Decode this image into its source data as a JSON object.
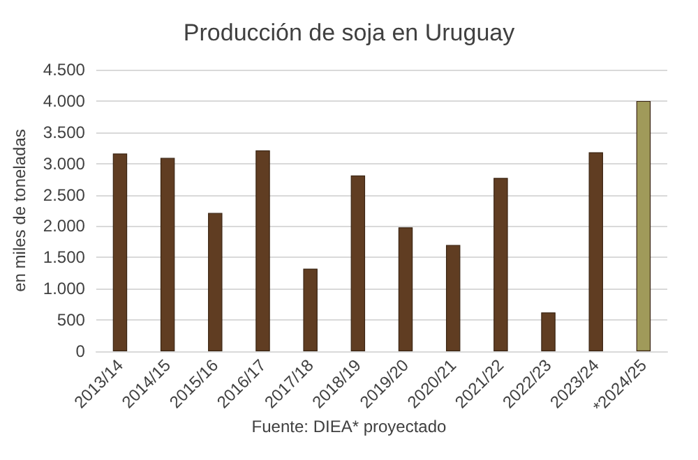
{
  "chart_data": {
    "type": "bar",
    "title": "Producción de soja en Uruguay",
    "ylabel": "en miles de toneladas",
    "categories": [
      "2013/14",
      "2014/15",
      "2015/16",
      "2016/17",
      "2017/18",
      "2018/19",
      "2019/20",
      "2020/21",
      "2021/22",
      "2022/23",
      "2023/24",
      "*2024/25"
    ],
    "values": [
      3160,
      3090,
      2210,
      3210,
      1320,
      2810,
      1980,
      1700,
      2770,
      620,
      3180,
      4000
    ],
    "colors": [
      "#603d22",
      "#603d22",
      "#603d22",
      "#603d22",
      "#603d22",
      "#603d22",
      "#603d22",
      "#603d22",
      "#603d22",
      "#603d22",
      "#603d22",
      "#a09a5a"
    ],
    "ylim": [
      0,
      4500
    ],
    "yticks": [
      0,
      500,
      {
        "value": 1000,
        "label": "1.000"
      },
      {
        "value": 1500,
        "label": "1.500"
      },
      {
        "value": 2000,
        "label": "2.000"
      },
      {
        "value": 2500,
        "label": "2.500"
      },
      {
        "value": 3000,
        "label": "3.000"
      },
      {
        "value": 3500,
        "label": "3.500"
      },
      {
        "value": 4000,
        "label": "4.000"
      },
      {
        "value": 4500,
        "label": "4.500"
      }
    ],
    "grid": "y",
    "annotations": [
      "Fuente: DIEA* proyectado"
    ]
  }
}
